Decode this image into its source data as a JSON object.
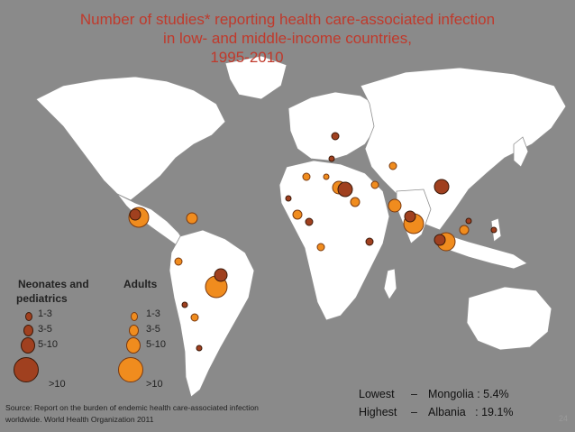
{
  "title": {
    "line1": "Number of studies* reporting health care-associated infection",
    "line2": "in low- and middle-income countries,",
    "line3": "1995-2010"
  },
  "legend": {
    "neonates_heading_line1": "Neonates and",
    "neonates_heading_line2": "pediatrics",
    "adults_heading": "Adults",
    "categories": [
      "1-3",
      "3-5",
      "5-10",
      ">10"
    ],
    "neonates_color": "#a0401f",
    "adults_color": "#f08c1e"
  },
  "source": {
    "line1": "Source: Report on the burden of endemic health care-associated infection",
    "line2": "worldwide. World Health Organization 2011"
  },
  "stats": {
    "lowest_label": "Lowest",
    "lowest_sep": "–",
    "lowest_value": "Mongolia : 5.4%",
    "highest_label": "Highest",
    "highest_sep": "–",
    "highest_value": "Albania   : 19.1%"
  },
  "page_number": "24"
}
